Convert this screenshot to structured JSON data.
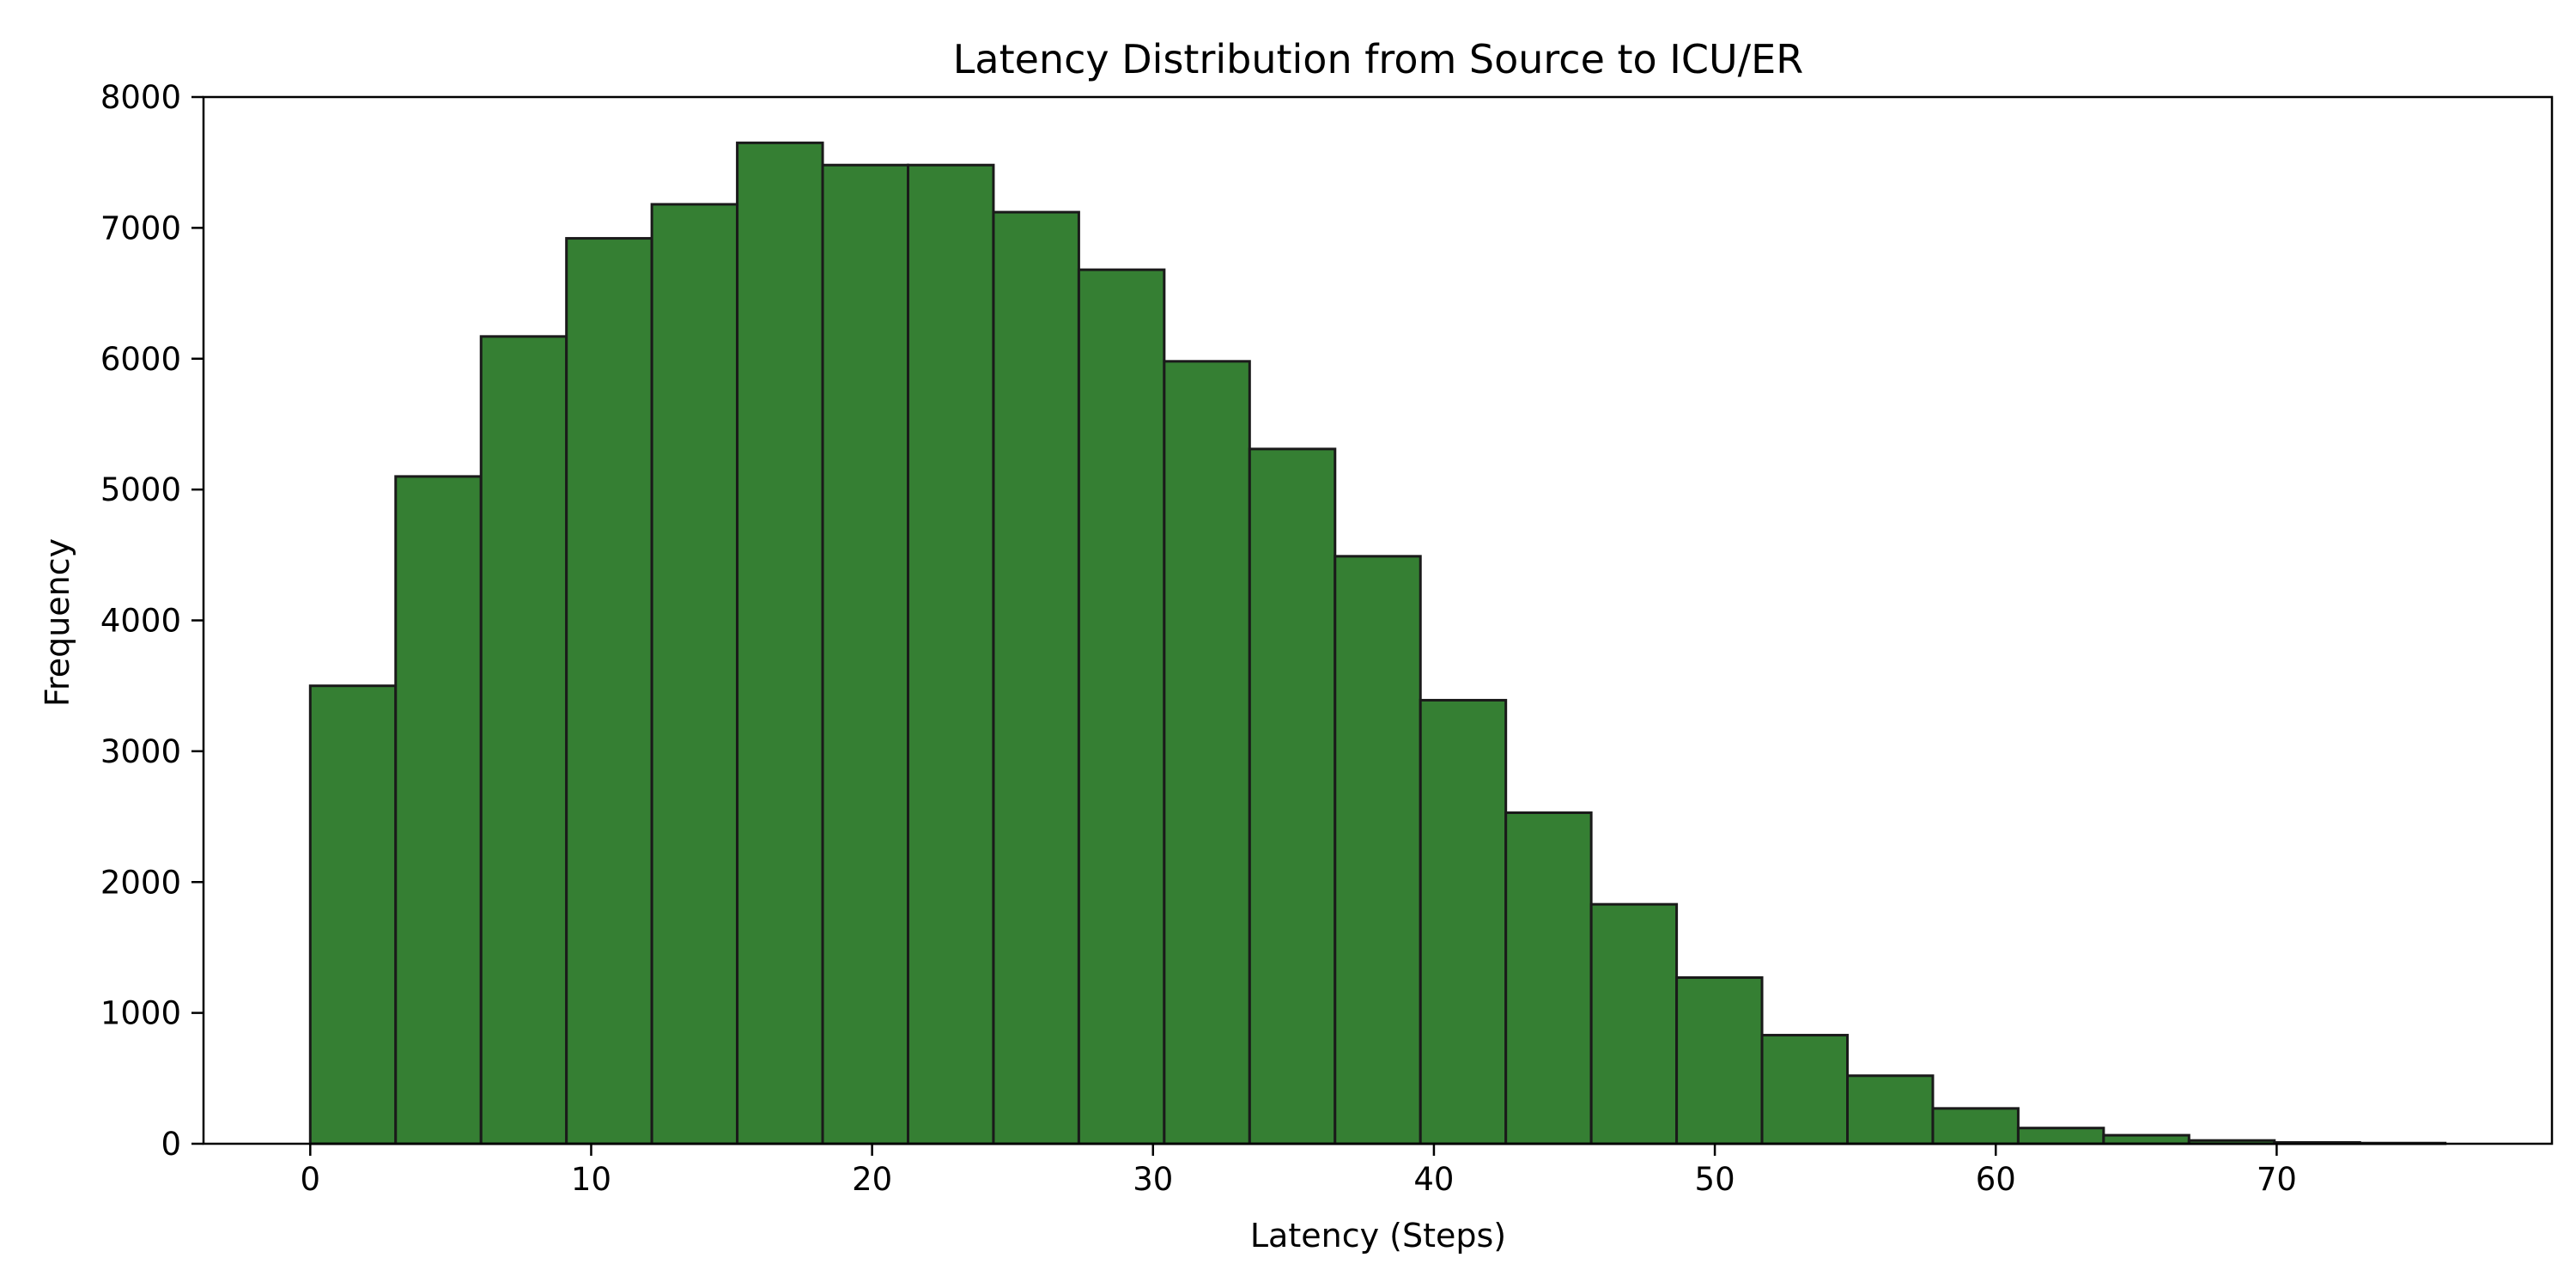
{
  "chart_data": {
    "type": "bar",
    "title": "Latency Distribution from Source to ICU/ER",
    "xlabel": "Latency (Steps)",
    "ylabel": "Frequency",
    "xlim": [
      -3.8,
      79.8
    ],
    "ylim": [
      0,
      8000
    ],
    "xticks": [
      0,
      10,
      20,
      30,
      40,
      50,
      60,
      70
    ],
    "yticks": [
      0,
      1000,
      2000,
      3000,
      4000,
      5000,
      6000,
      7000,
      8000
    ],
    "bin_edges": [
      0.0,
      3.04,
      6.08,
      9.12,
      12.16,
      15.2,
      18.24,
      21.28,
      24.32,
      27.36,
      30.4,
      33.44,
      36.48,
      39.52,
      42.56,
      45.6,
      48.64,
      51.68,
      54.72,
      57.76,
      60.8,
      63.84,
      66.88,
      69.92,
      72.96,
      76.0
    ],
    "values": [
      3500,
      5100,
      6170,
      6920,
      7180,
      7650,
      7480,
      7480,
      7120,
      6680,
      5980,
      5310,
      4490,
      3390,
      2530,
      1830,
      1270,
      830,
      520,
      270,
      120,
      65,
      25,
      10,
      5
    ],
    "grid": false,
    "colors": {
      "bar_fill": "#357f33",
      "bar_edge": "#1a1a1a",
      "axes": "#000000"
    }
  }
}
